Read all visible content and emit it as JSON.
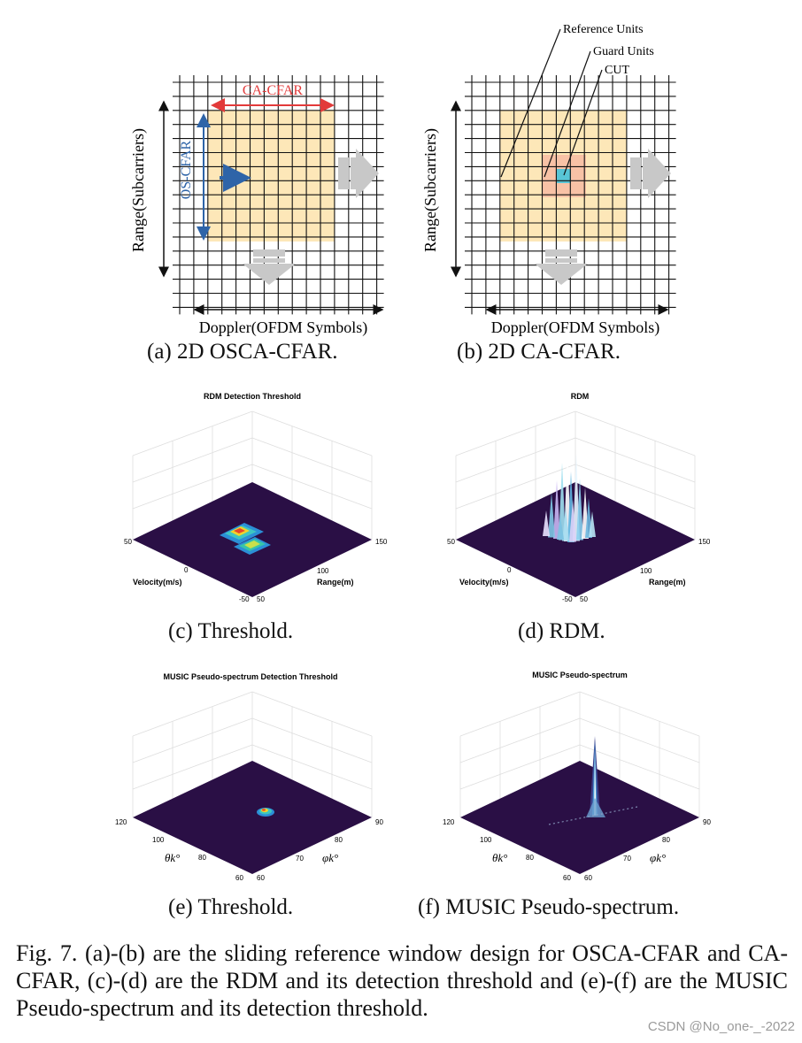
{
  "figure": {
    "a": {
      "range_label": "Range(Subcarriers)",
      "doppler_label": "Doppler(OFDM Symbols)",
      "ca_label": "CA-CFAR",
      "os_label": "OS-CFAR",
      "caption": "(a) 2D OSCA-CFAR."
    },
    "b": {
      "range_label": "Range(Subcarriers)",
      "doppler_label": "Doppler(OFDM Symbols)",
      "ref_label": "Reference Units",
      "guard_label": "Guard Units",
      "cut_label": "CUT",
      "caption": "(b) 2D CA-CFAR."
    },
    "c": {
      "title": "RDM Detection Threshold",
      "xlabel": "Velocity(m/s)",
      "ylabel": "Range(m)",
      "v_ticks": [
        "50",
        "0",
        "-50"
      ],
      "r_ticks": [
        "50",
        "100",
        "150"
      ],
      "caption": "(c) Threshold."
    },
    "d": {
      "title": "RDM",
      "xlabel": "Velocity(m/s)",
      "ylabel": "Range(m)",
      "v_ticks": [
        "50",
        "0",
        "-50"
      ],
      "r_ticks": [
        "50",
        "100",
        "150"
      ],
      "caption": "(d) RDM."
    },
    "e": {
      "title": "MUSIC Pseudo-spectrum Detection Threshold",
      "theta_label": "θk°",
      "phi_label": "φk°",
      "theta_ticks": [
        "120",
        "100",
        "80",
        "60"
      ],
      "phi_ticks": [
        "60",
        "70",
        "80",
        "90"
      ],
      "caption": "(e) Threshold."
    },
    "f": {
      "title": "MUSIC Pseudo-spectrum",
      "theta_label": "θk°",
      "phi_label": "φk°",
      "theta_ticks": [
        "120",
        "100",
        "80",
        "60"
      ],
      "phi_ticks": [
        "60",
        "70",
        "80",
        "90"
      ],
      "caption": "(f) MUSIC Pseudo-spectrum."
    }
  },
  "caption": "Fig. 7.  (a)-(b) are the sliding reference window design for OSCA-CFAR and CA-CFAR, (c)-(d) are the RDM and its detection threshold and (e)-(f) are the MUSIC Pseudo-spectrum and its detection threshold.",
  "watermark": "CSDN @No_one-_-2022",
  "colors": {
    "reference": "#fde7b8",
    "guard": "#f8c2a6",
    "cut": "#58c5d6",
    "ca_arrow": "#e23a3a",
    "os_arrow": "#2e64a8",
    "surface_floor": "#2a0f45"
  }
}
